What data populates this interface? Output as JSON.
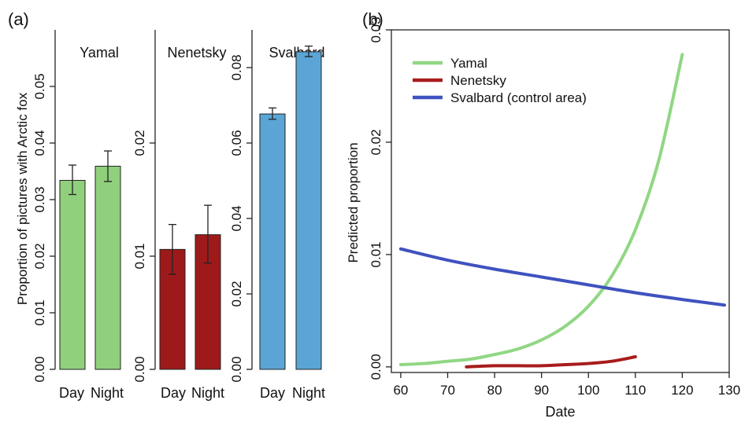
{
  "panel_labels": {
    "a": "(a)",
    "b": "(b)"
  },
  "chart_data": [
    {
      "type": "bar",
      "panel": "(a)",
      "ylabel": "Proportion of pictures with Arctic fox",
      "title": "Yamal",
      "categories": [
        "Day",
        "Night"
      ],
      "values": [
        0.0334,
        0.0359
      ],
      "error_low": [
        0.0309,
        0.0332
      ],
      "error_high": [
        0.0361,
        0.0386
      ],
      "ylim": [
        0,
        0.06
      ],
      "yticks": [
        "0.00",
        "0.01",
        "0.02",
        "0.03",
        "0.04",
        "0.05"
      ],
      "color": "#90d07d",
      "grid": false
    },
    {
      "type": "bar",
      "panel": "(a)",
      "title": "Nenetsky",
      "categories": [
        "Day",
        "Night"
      ],
      "values": [
        0.0106,
        0.0119
      ],
      "error_low": [
        0.0084,
        0.0094
      ],
      "error_high": [
        0.0128,
        0.0145
      ],
      "ylim": [
        0,
        0.03
      ],
      "yticks": [
        "0.00",
        "0.01",
        "0.02"
      ],
      "color": "#9e1a1a",
      "grid": false
    },
    {
      "type": "bar",
      "panel": "(a)",
      "title": "Svalbard",
      "categories": [
        "Day",
        "Night"
      ],
      "values": [
        0.0677,
        0.0842
      ],
      "error_low": [
        0.0663,
        0.0829
      ],
      "error_high": [
        0.0693,
        0.0857
      ],
      "ylim": [
        0,
        0.09
      ],
      "yticks": [
        "0.00",
        "0.02",
        "0.04",
        "0.06",
        "0.08"
      ],
      "color": "#5aa5d6",
      "grid": false
    },
    {
      "type": "line",
      "panel": "(b)",
      "xlabel": "Date",
      "ylabel": "Predicted proportion",
      "xlim": [
        58,
        130
      ],
      "ylim": [
        -0.0005,
        0.03
      ],
      "xticks": [
        "60",
        "70",
        "80",
        "90",
        "100",
        "110",
        "120",
        "130"
      ],
      "yticks": [
        "0.00",
        "0.01",
        "0.02",
        "0.03"
      ],
      "legend_position": "top-left",
      "grid": false,
      "series": [
        {
          "name": "Yamal",
          "color": "#90d783",
          "x": [
            60,
            65,
            70,
            75,
            80,
            85,
            90,
            95,
            100,
            105,
            110,
            115,
            120
          ],
          "y": [
            0.0002,
            0.0003,
            0.0005,
            0.0007,
            0.0011,
            0.0016,
            0.0024,
            0.0036,
            0.0054,
            0.0081,
            0.0122,
            0.0184,
            0.0278
          ]
        },
        {
          "name": "Nenetsky",
          "color": "#a81c1c",
          "x": [
            74,
            80,
            85,
            90,
            95,
            100,
            105,
            110
          ],
          "y": [
            0.0,
            0.0001,
            0.0001,
            0.0001,
            0.0002,
            0.0003,
            0.0005,
            0.0009
          ]
        },
        {
          "name": "Svalbard (control area)",
          "color": "#3f52bf",
          "x": [
            60,
            70,
            80,
            90,
            100,
            110,
            120,
            129
          ],
          "y": [
            0.0105,
            0.0095,
            0.0087,
            0.008,
            0.0073,
            0.0066,
            0.006,
            0.0055
          ]
        }
      ]
    }
  ]
}
